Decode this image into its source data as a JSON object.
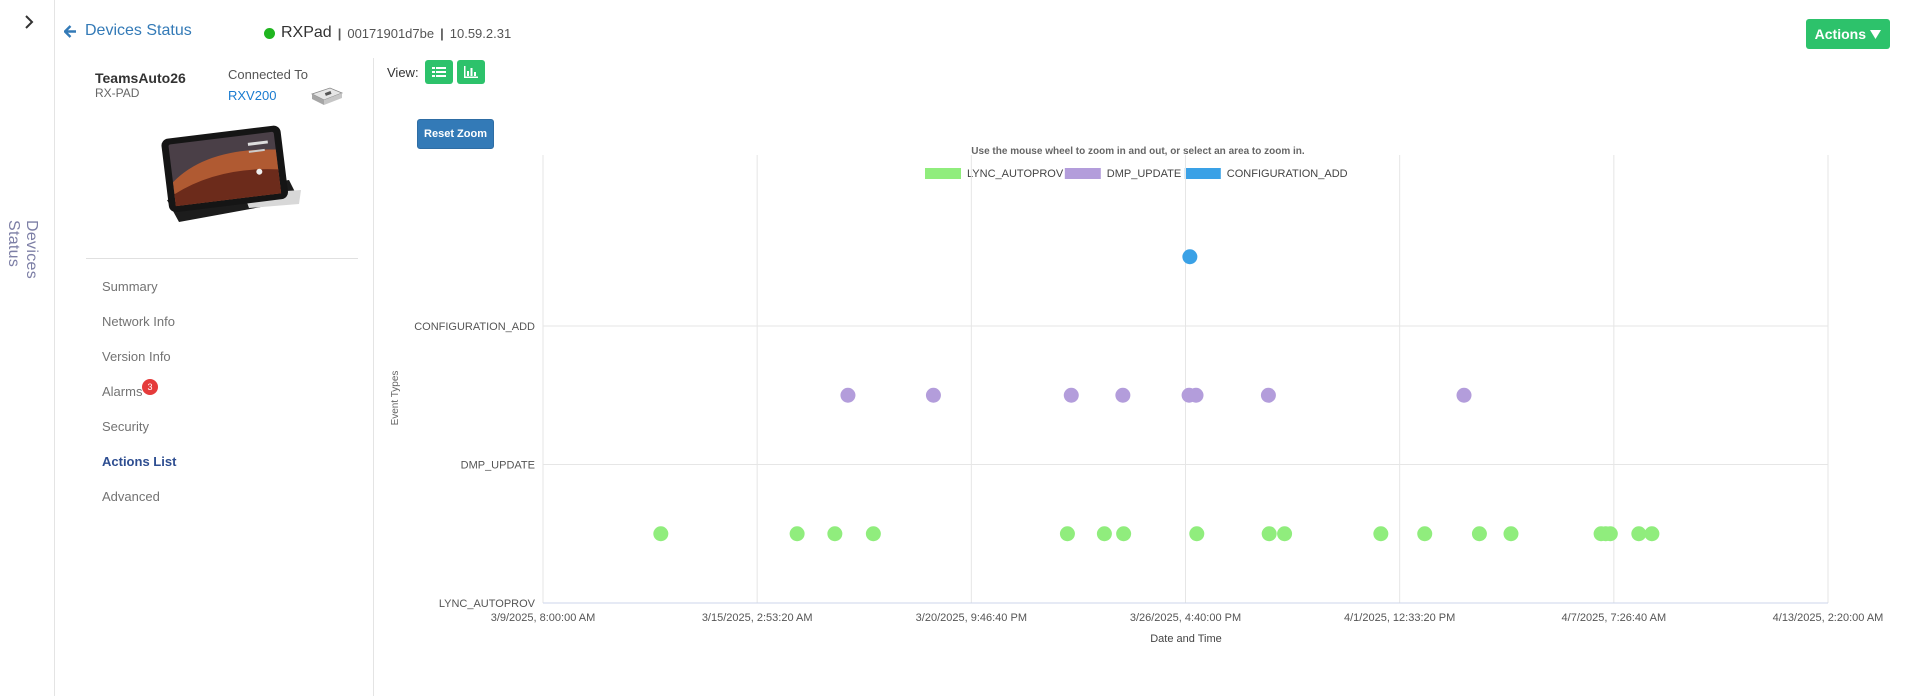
{
  "rail": {
    "label": "Devices Status"
  },
  "header": {
    "back_label": "Devices Status",
    "device_name": "RXPad",
    "device_sep1": "|",
    "device_mac": "00171901d7be",
    "device_sep2": "|",
    "device_ip": "10.59.2.31",
    "actions_label": "Actions",
    "status_color": "#1fb51f",
    "accent_color": "#2dc26b"
  },
  "device": {
    "name": "TeamsAuto26",
    "model": "RX-PAD",
    "connected_label": "Connected To",
    "connected_device": "RXV200"
  },
  "nav": {
    "items": [
      {
        "label": "Summary",
        "active": false
      },
      {
        "label": "Network Info",
        "active": false
      },
      {
        "label": "Version Info",
        "active": false
      },
      {
        "label": "Alarms",
        "active": false,
        "badge": "3"
      },
      {
        "label": "Security",
        "active": false
      },
      {
        "label": "Actions List",
        "active": true
      },
      {
        "label": "Advanced",
        "active": false
      }
    ]
  },
  "view": {
    "label": "View:",
    "list_icon": "list-icon",
    "chart_icon": "bar-chart-icon",
    "reset_zoom": "Reset Zoom"
  },
  "chart_data": {
    "type": "scatter",
    "subtitle": "Use the mouse wheel to zoom in and out, or select an area to zoom in.",
    "xlabel": "Date and Time",
    "ylabel": "Event Types",
    "x_ticks": [
      "3/9/2025, 8:00:00 AM",
      "3/15/2025, 2:53:20 AM",
      "3/20/2025, 9:46:40 PM",
      "3/26/2025, 4:40:00 PM",
      "4/1/2025, 12:33:20 PM",
      "4/7/2025, 7:26:40 AM",
      "4/13/2025, 2:20:00 AM"
    ],
    "y_ticks": [
      "LYNC_AUTOPROV",
      "DMP_UPDATE",
      "CONFIGURATION_ADD"
    ],
    "grid": true,
    "legend_position": "top-center",
    "series": [
      {
        "name": "LYNC_AUTOPROV",
        "color": "#90ed7d",
        "y": "LYNC_AUTOPROV",
        "x": [
          "2025-03-12 12:30",
          "2025-03-16 05:00",
          "2025-03-17 05:30",
          "2025-03-18 06:30",
          "2025-03-23 12:30",
          "2025-03-24 12:30",
          "2025-03-25 01:00",
          "2025-03-27 00:30",
          "2025-03-28 23:30",
          "2025-03-29 09:30",
          "2025-04-01 00:00",
          "2025-04-02 04:30",
          "2025-04-03 16:00",
          "2025-04-04 12:30",
          "2025-04-06 23:00",
          "2025-04-07 02:00",
          "2025-04-07 05:00",
          "2025-04-07 23:30",
          "2025-04-08 08:00"
        ]
      },
      {
        "name": "DMP_UPDATE",
        "color": "#b39ddb",
        "y": "DMP_UPDATE",
        "x": [
          "2025-03-17 14:00",
          "2025-03-19 21:30",
          "2025-03-23 15:00",
          "2025-03-25 00:30",
          "2025-03-26 19:30",
          "2025-03-27 00:00",
          "2025-03-28 23:00",
          "2025-04-03 06:00"
        ]
      },
      {
        "name": "CONFIGURATION_ADD",
        "color": "#3aa1e6",
        "y": "CONFIGURATION_ADD",
        "x": [
          "2025-03-26 20:00"
        ]
      }
    ]
  }
}
